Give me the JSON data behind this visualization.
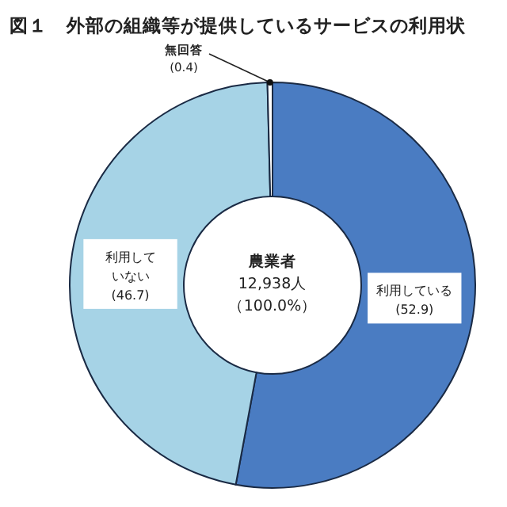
{
  "chart_data": {
    "type": "donut",
    "title": "図１　外部の組織等が提供しているサービスの利用状",
    "categories": [
      "利用している",
      "利用していない",
      "無回答"
    ],
    "values": [
      52.9,
      46.7,
      0.4
    ],
    "value_labels": [
      "(52.9)",
      "(46.7)",
      "(0.4)"
    ],
    "colors": [
      "#4a7cc2",
      "#a6d3e6",
      "#ffffff"
    ],
    "annotations": [
      "農業者",
      "12,938人",
      "（100.0%）"
    ]
  }
}
